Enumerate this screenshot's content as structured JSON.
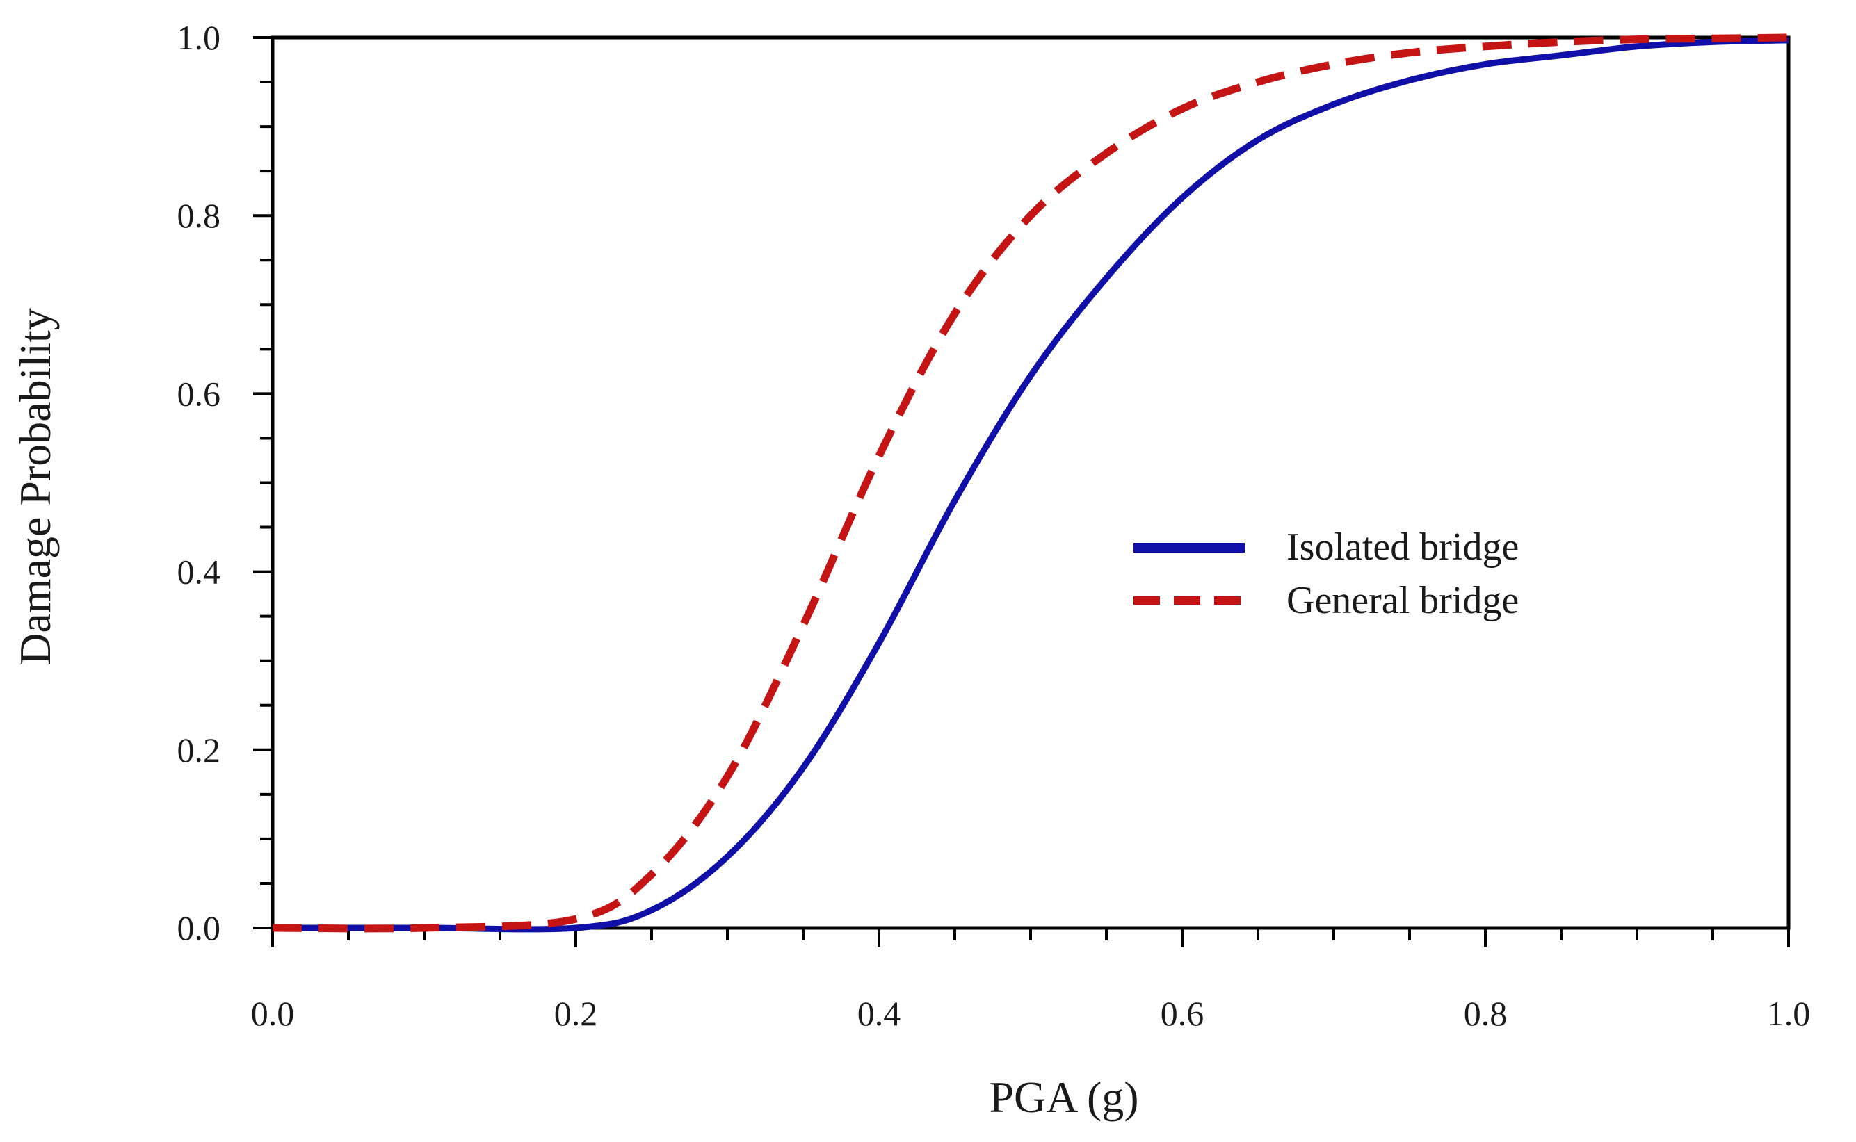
{
  "chart_data": {
    "type": "line",
    "title": "",
    "xlabel": "PGA (g)",
    "ylabel": "Damage Probability",
    "xlim": [
      0.0,
      1.0
    ],
    "ylim": [
      0.0,
      1.0
    ],
    "x_ticks": [
      "0.0",
      "0.2",
      "0.4",
      "0.6",
      "0.8",
      "1.0"
    ],
    "y_ticks": [
      "0.0",
      "0.2",
      "0.4",
      "0.6",
      "0.8",
      "1.0"
    ],
    "grid": false,
    "legend_position": "center-right",
    "series": [
      {
        "name": "Isolated bridge",
        "style": "solid",
        "color": "#1010a8",
        "x": [
          0.0,
          0.1,
          0.2,
          0.25,
          0.3,
          0.35,
          0.4,
          0.45,
          0.5,
          0.55,
          0.6,
          0.65,
          0.7,
          0.75,
          0.8,
          0.85,
          0.9,
          0.95,
          1.0
        ],
        "y": [
          0.0,
          0.0,
          0.0,
          0.02,
          0.08,
          0.18,
          0.32,
          0.48,
          0.62,
          0.73,
          0.82,
          0.885,
          0.925,
          0.952,
          0.97,
          0.98,
          0.99,
          0.995,
          0.997
        ]
      },
      {
        "name": "General bridge",
        "style": "dashed",
        "color": "#c41414",
        "x": [
          0.0,
          0.1,
          0.2,
          0.25,
          0.3,
          0.35,
          0.4,
          0.45,
          0.5,
          0.55,
          0.6,
          0.65,
          0.7,
          0.75,
          0.8,
          0.85,
          0.9,
          0.95,
          1.0
        ],
        "y": [
          0.0,
          0.0,
          0.01,
          0.06,
          0.17,
          0.34,
          0.53,
          0.69,
          0.8,
          0.87,
          0.92,
          0.95,
          0.97,
          0.983,
          0.99,
          0.995,
          0.998,
          0.999,
          1.0
        ]
      }
    ]
  }
}
